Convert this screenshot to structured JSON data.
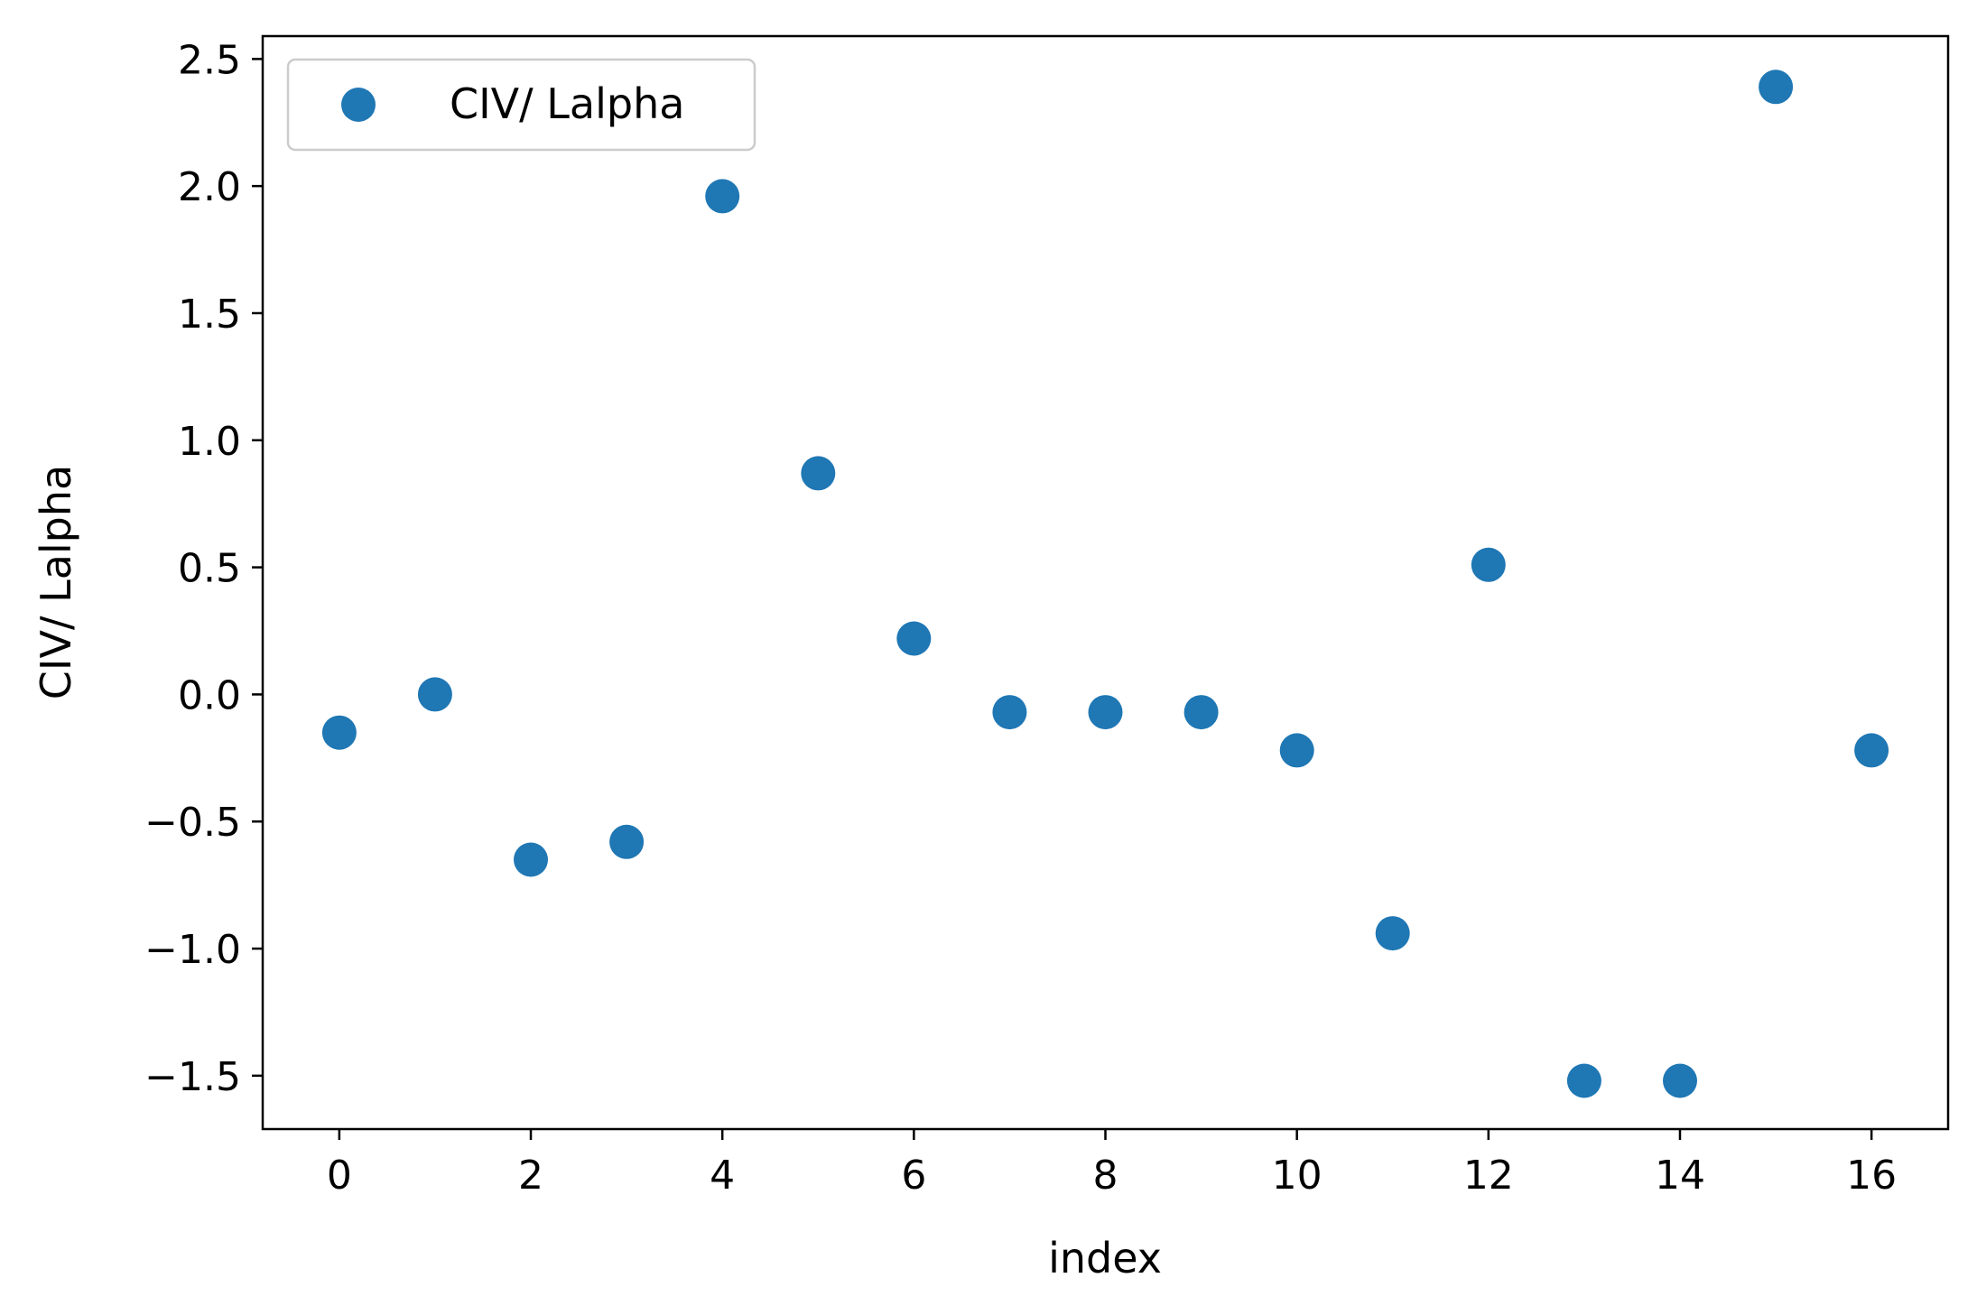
{
  "chart_data": {
    "type": "scatter",
    "title": "",
    "xlabel": "index",
    "ylabel": "CIV/ Lalpha",
    "xlim": [
      -0.8,
      16.8
    ],
    "ylim": [
      -1.71,
      2.59
    ],
    "xticks": [
      0,
      2,
      4,
      6,
      8,
      10,
      12,
      14,
      16
    ],
    "xtick_labels": [
      "0",
      "2",
      "4",
      "6",
      "8",
      "10",
      "12",
      "14",
      "16"
    ],
    "yticks": [
      -1.5,
      -1.0,
      -0.5,
      0.0,
      0.5,
      1.0,
      1.5,
      2.0,
      2.5
    ],
    "ytick_labels": [
      "−1.5",
      "−1.0",
      "−0.5",
      "0.0",
      "0.5",
      "1.0",
      "1.5",
      "2.0",
      "2.5"
    ],
    "grid": false,
    "legend_position": "upper-left",
    "series": [
      {
        "name": "CIV/ Lalpha",
        "color": "#1f77b4",
        "marker": "circle",
        "x": [
          0,
          1,
          2,
          3,
          4,
          5,
          6,
          7,
          8,
          9,
          10,
          11,
          12,
          13,
          14,
          15,
          16
        ],
        "y": [
          -0.15,
          0.0,
          -0.65,
          -0.58,
          1.96,
          0.87,
          0.22,
          -0.07,
          -0.07,
          -0.07,
          -0.22,
          -0.94,
          0.51,
          -1.52,
          -1.52,
          2.39,
          -0.22
        ]
      }
    ]
  }
}
